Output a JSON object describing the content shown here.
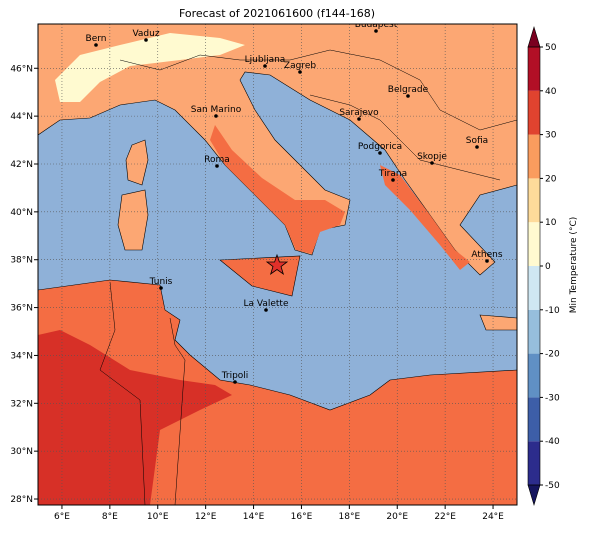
{
  "title": "Forecast of 2021061600 (f144-168)",
  "map": {
    "lon_range": [
      5,
      25
    ],
    "lat_range": [
      27.75,
      47.85
    ],
    "lon_ticks": [
      {
        "value": 6,
        "label": "6°E"
      },
      {
        "value": 8,
        "label": "8°E"
      },
      {
        "value": 10,
        "label": "10°E"
      },
      {
        "value": 12,
        "label": "12°E"
      },
      {
        "value": 14,
        "label": "14°E"
      },
      {
        "value": 16,
        "label": "16°E"
      },
      {
        "value": 18,
        "label": "18°E"
      },
      {
        "value": 20,
        "label": "20°E"
      },
      {
        "value": 22,
        "label": "22°E"
      },
      {
        "value": 24,
        "label": "24°E"
      }
    ],
    "lat_ticks": [
      {
        "value": 28,
        "label": "28°N"
      },
      {
        "value": 30,
        "label": "30°N"
      },
      {
        "value": 32,
        "label": "32°N"
      },
      {
        "value": 34,
        "label": "34°N"
      },
      {
        "value": 36,
        "label": "36°N"
      },
      {
        "value": 38,
        "label": "38°N"
      },
      {
        "value": 40,
        "label": "40°N"
      },
      {
        "value": 42,
        "label": "42°N"
      },
      {
        "value": 44,
        "label": "44°N"
      },
      {
        "value": 46,
        "label": "46°N"
      }
    ],
    "cities": [
      "Bern",
      "Vaduz",
      "Budapest",
      "Ljubljana",
      "Zagreb",
      "Belgrade",
      "San Marino",
      "Sarajevo",
      "Sofia",
      "Podgorica",
      "Skopje",
      "Roma",
      "Tirana",
      "Athens",
      "Tunis",
      "La Valette",
      "Tripoli"
    ]
  },
  "colorbar": {
    "label": "Min Temperature (°C)",
    "range": [
      -50,
      50
    ],
    "ticks": [
      -50,
      -40,
      -30,
      -20,
      -10,
      0,
      10,
      20,
      30,
      40,
      50
    ],
    "colors": [
      "#2c2c8c",
      "#3d5ea8",
      "#6090c4",
      "#96bedc",
      "#cfe7f2",
      "#fffad0",
      "#fedb9a",
      "#fa9c5e",
      "#e0432f",
      "#b20f26"
    ],
    "under_color": "#15155e",
    "over_color": "#7a0020"
  }
}
